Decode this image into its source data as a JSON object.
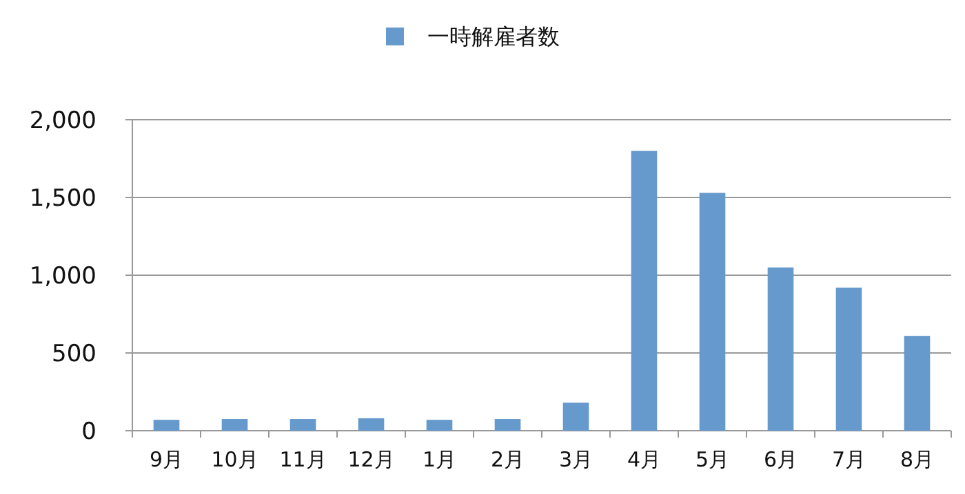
{
  "chart_data": {
    "type": "bar",
    "categories": [
      "9月",
      "10月",
      "11月",
      "12月",
      "1月",
      "2月",
      "3月",
      "4月",
      "5月",
      "6月",
      "7月",
      "8月"
    ],
    "series": [
      {
        "name": "一時解雇者数",
        "color": "#6699cc",
        "values": [
          70,
          75,
          75,
          80,
          70,
          75,
          180,
          1800,
          1530,
          1050,
          920,
          610
        ]
      }
    ],
    "ylim": [
      0,
      2000
    ],
    "yticks": [
      0,
      {
        "value": 500,
        "label": "500"
      },
      {
        "value": 1000,
        "label": "1,000"
      },
      {
        "value": 1500,
        "label": "1,500"
      },
      {
        "value": 2000,
        "label": "2,000"
      }
    ],
    "grid": "y",
    "legend": "top"
  }
}
